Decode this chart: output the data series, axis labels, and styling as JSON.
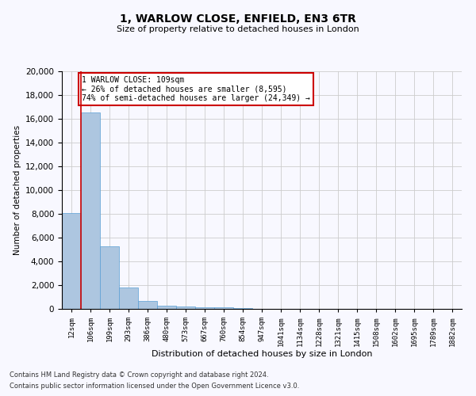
{
  "title_line1": "1, WARLOW CLOSE, ENFIELD, EN3 6TR",
  "title_line2": "Size of property relative to detached houses in London",
  "xlabel": "Distribution of detached houses by size in London",
  "ylabel": "Number of detached properties",
  "categories": [
    "12sqm",
    "106sqm",
    "199sqm",
    "293sqm",
    "386sqm",
    "480sqm",
    "573sqm",
    "667sqm",
    "760sqm",
    "854sqm",
    "947sqm",
    "1041sqm",
    "1134sqm",
    "1228sqm",
    "1321sqm",
    "1415sqm",
    "1508sqm",
    "1602sqm",
    "1695sqm",
    "1789sqm",
    "1882sqm"
  ],
  "values": [
    8050,
    16550,
    5300,
    1800,
    650,
    300,
    200,
    150,
    110,
    60,
    0,
    0,
    0,
    0,
    0,
    0,
    0,
    0,
    0,
    0,
    0
  ],
  "bar_color": "#adc6e0",
  "bar_edge_color": "#5a9fd4",
  "vline_color": "#cc0000",
  "annotation_text": "1 WARLOW CLOSE: 109sqm\n← 26% of detached houses are smaller (8,595)\n74% of semi-detached houses are larger (24,349) →",
  "annotation_box_color": "#ffffff",
  "annotation_box_edgecolor": "#cc0000",
  "ylim": [
    0,
    20000
  ],
  "yticks": [
    0,
    2000,
    4000,
    6000,
    8000,
    10000,
    12000,
    14000,
    16000,
    18000,
    20000
  ],
  "grid_color": "#cccccc",
  "footnote_line1": "Contains HM Land Registry data © Crown copyright and database right 2024.",
  "footnote_line2": "Contains public sector information licensed under the Open Government Licence v3.0.",
  "bg_color": "#f8f8ff"
}
